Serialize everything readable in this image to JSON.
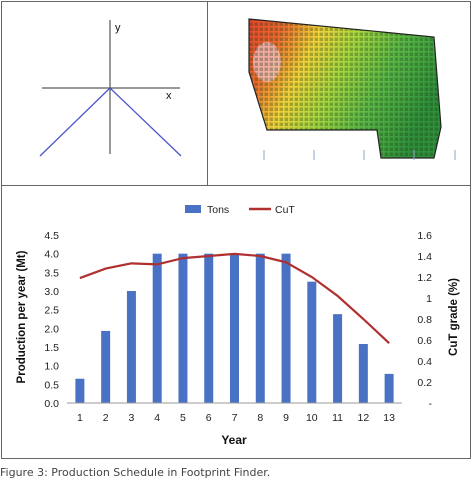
{
  "axes_panel": {
    "y_label": "y",
    "x_label": "x"
  },
  "caption": "Figure 3: Production Schedule in Footprint Finder.",
  "colors": {
    "bar": "#4a72c4",
    "line": "#b03030",
    "cone": "#4b57c8",
    "axis": "#333333"
  },
  "chart_data": {
    "type": "bar",
    "categories": [
      "1",
      "2",
      "3",
      "4",
      "5",
      "6",
      "7",
      "8",
      "9",
      "10",
      "11",
      "12",
      "13"
    ],
    "series": [
      {
        "name": "Tons",
        "type": "bar",
        "axis": "left",
        "values": [
          0.65,
          1.93,
          3.0,
          4.0,
          4.0,
          4.0,
          4.0,
          4.0,
          4.0,
          3.25,
          2.38,
          1.58,
          0.78
        ]
      },
      {
        "name": "CuT",
        "type": "line",
        "axis": "right",
        "values": [
          1.19,
          1.28,
          1.33,
          1.32,
          1.38,
          1.4,
          1.42,
          1.4,
          1.34,
          1.2,
          1.02,
          0.8,
          0.57
        ]
      }
    ],
    "xlabel": "Year",
    "ylabel": "Production per year (Mt)",
    "y2label": "CuT grade (%)",
    "ylim": [
      0,
      4.5
    ],
    "y2lim": [
      0,
      1.6
    ],
    "yticks": [
      "0.0",
      "0.5",
      "1.0",
      "1.5",
      "2.0",
      "2.5",
      "3.0",
      "3.5",
      "4.0",
      "4.5"
    ],
    "y2ticks": [
      "-",
      "0.2",
      "0.4",
      "0.6",
      "0.8",
      "1",
      "1.2",
      "1.4",
      "1.6"
    ],
    "legend": "top",
    "grid": false
  }
}
